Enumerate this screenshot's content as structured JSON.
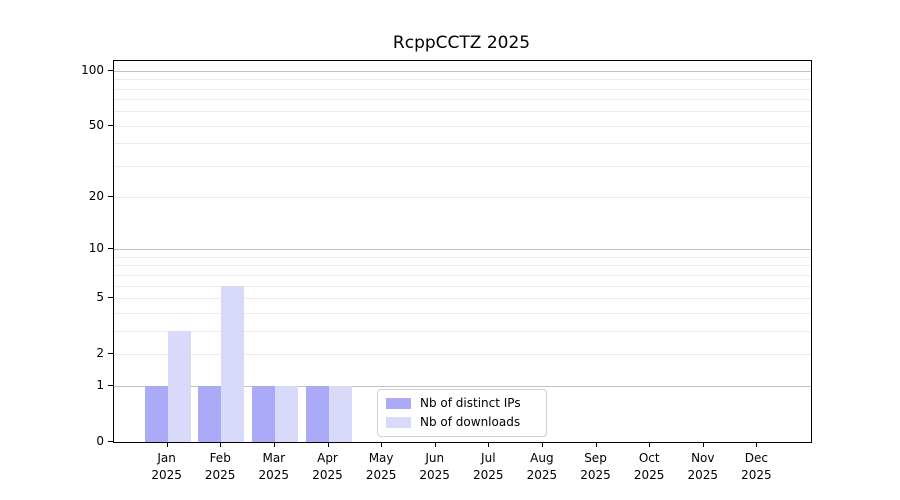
{
  "title": "RcppCCTZ 2025",
  "colors": {
    "background": "#ffffff",
    "axis": "#000000",
    "grid_major": "#c2c2c2",
    "grid_minor": "#ebebeb",
    "text": "#000000",
    "legend_border": "#d0d0d0"
  },
  "chart_data": {
    "type": "bar",
    "title": "RcppCCTZ 2025",
    "yscale": "log1p",
    "grid": "horizontal",
    "legend_position": "lower center",
    "categories": [
      "Jan 2025",
      "Feb 2025",
      "Mar 2025",
      "Apr 2025",
      "May 2025",
      "Jun 2025",
      "Jul 2025",
      "Aug 2025",
      "Sep 2025",
      "Oct 2025",
      "Nov 2025",
      "Dec 2025"
    ],
    "series": [
      {
        "name": "Nb of distinct IPs",
        "color": "#aaaaf8",
        "values": [
          1,
          1,
          1,
          1,
          0,
          0,
          0,
          0,
          0,
          0,
          0,
          0
        ]
      },
      {
        "name": "Nb of downloads",
        "color": "#d9d9f9",
        "values": [
          3,
          6,
          1,
          1,
          0,
          0,
          0,
          0,
          0,
          0,
          0,
          0
        ]
      }
    ],
    "yticks": [
      0,
      1,
      2,
      5,
      10,
      20,
      50,
      100
    ],
    "major_gridlines": [
      1,
      10,
      100
    ],
    "minor_gridlines": [
      2,
      3,
      4,
      5,
      6,
      7,
      8,
      9,
      20,
      30,
      40,
      50,
      60,
      70,
      80,
      90
    ],
    "ylim": [
      0,
      113
    ],
    "xlabel": "",
    "ylabel": ""
  }
}
